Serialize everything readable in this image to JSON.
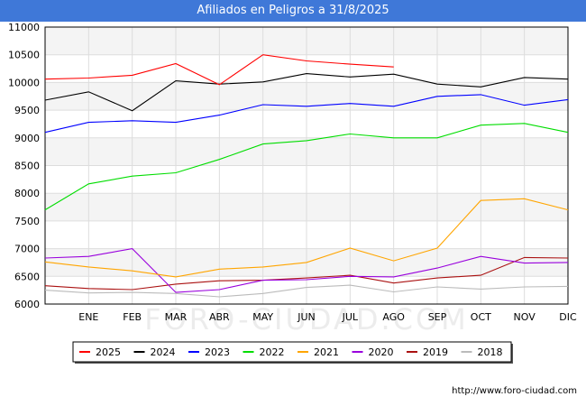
{
  "header": {
    "title": "Afiliados en Peligros a 31/8/2025"
  },
  "watermark": "FORO-CIUDAD.COM",
  "footer": {
    "url": "http://www.foro-ciudad.com"
  },
  "chart_data": {
    "type": "line",
    "title": "Afiliados en Peligros a 31/8/2025",
    "xlabel": "",
    "ylabel": "",
    "categories": [
      "",
      "ENE",
      "FEB",
      "MAR",
      "ABR",
      "MAY",
      "JUN",
      "JUL",
      "AGO",
      "SEP",
      "OCT",
      "NOV",
      "DIC"
    ],
    "ylim": [
      6000,
      11000
    ],
    "yticks": [
      6000,
      6500,
      7000,
      7500,
      8000,
      8500,
      9000,
      9500,
      10000,
      10500,
      11000
    ],
    "grid": true,
    "legend_position": "bottom",
    "series": [
      {
        "name": "2025",
        "color": "#ff0000",
        "values": [
          10060,
          10080,
          10130,
          10340,
          9960,
          10500,
          10390,
          10330,
          10280,
          null,
          null,
          null,
          null
        ]
      },
      {
        "name": "2024",
        "color": "#000000",
        "values": [
          9680,
          9830,
          9490,
          10030,
          9970,
          10010,
          10160,
          10100,
          10150,
          9970,
          9920,
          10090,
          10060
        ]
      },
      {
        "name": "2023",
        "color": "#0000ff",
        "values": [
          9100,
          9280,
          9310,
          9280,
          9410,
          9600,
          9570,
          9620,
          9570,
          9750,
          9780,
          9590,
          9690
        ]
      },
      {
        "name": "2022",
        "color": "#00dd00",
        "values": [
          7700,
          8170,
          8310,
          8370,
          8610,
          8890,
          8950,
          9070,
          9000,
          9000,
          9230,
          9260,
          9100
        ]
      },
      {
        "name": "2021",
        "color": "#ffa500",
        "values": [
          6760,
          6670,
          6600,
          6490,
          6630,
          6670,
          6750,
          7010,
          6780,
          7010,
          7870,
          7900,
          7700
        ]
      },
      {
        "name": "2020",
        "color": "#9900dd",
        "values": [
          6830,
          6860,
          7000,
          6210,
          6260,
          6430,
          6440,
          6500,
          6490,
          6650,
          6860,
          6740,
          6750
        ]
      },
      {
        "name": "2019",
        "color": "#aa1111",
        "values": [
          6330,
          6280,
          6260,
          6360,
          6420,
          6430,
          6470,
          6520,
          6380,
          6470,
          6520,
          6840,
          6830
        ]
      },
      {
        "name": "2018",
        "color": "#bbbbbb",
        "values": [
          6250,
          6200,
          6210,
          6190,
          6130,
          6190,
          6300,
          6340,
          6220,
          6310,
          6270,
          6310,
          6320
        ]
      }
    ]
  }
}
